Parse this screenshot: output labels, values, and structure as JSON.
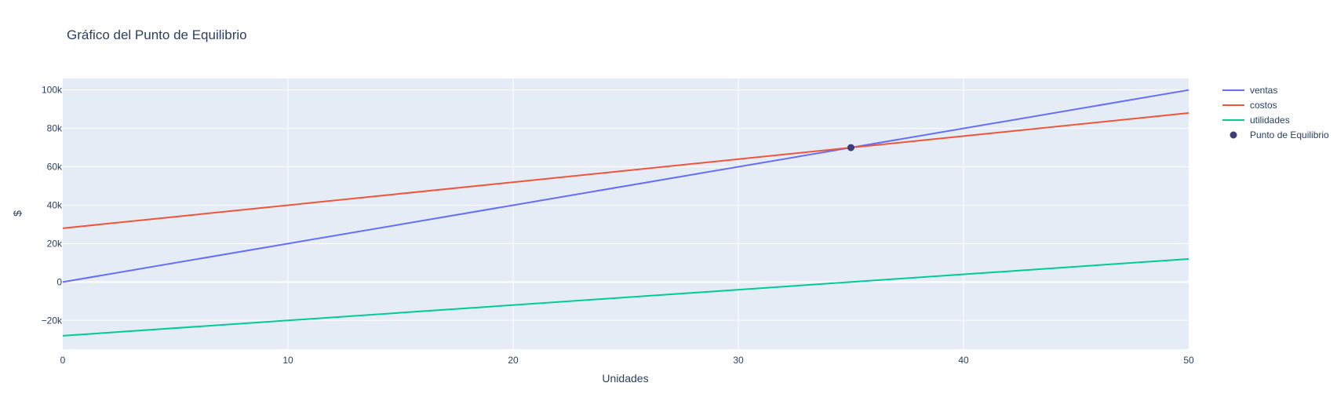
{
  "chart_data": {
    "type": "line",
    "title": "Gráfico del Punto de Equilibrio",
    "xlabel": "Unidades",
    "ylabel": "$",
    "xlim": [
      0,
      50
    ],
    "ylim": [
      -35000,
      106000
    ],
    "x_ticks": [
      0,
      10,
      20,
      30,
      40,
      50
    ],
    "x_tick_labels": [
      "0",
      "10",
      "20",
      "30",
      "40",
      "50"
    ],
    "y_ticks": [
      -20000,
      0,
      20000,
      40000,
      60000,
      80000,
      100000
    ],
    "y_tick_labels": [
      "−20k",
      "0",
      "20k",
      "40k",
      "60k",
      "80k",
      "100k"
    ],
    "grid": true,
    "legend_position": "top-right-outside",
    "series": [
      {
        "name": "ventas",
        "color": "#636efa",
        "mode": "lines",
        "x": [
          0,
          50
        ],
        "y": [
          0,
          100000
        ]
      },
      {
        "name": "costos",
        "color": "#ef553b",
        "mode": "lines",
        "x": [
          0,
          50
        ],
        "y": [
          28000,
          88000
        ]
      },
      {
        "name": "utilidades",
        "color": "#00cc96",
        "mode": "lines",
        "x": [
          0,
          50
        ],
        "y": [
          -28000,
          12000
        ]
      },
      {
        "name": "Punto de Equilibrio",
        "color": "#3d3d7a",
        "mode": "markers",
        "x": [
          35
        ],
        "y": [
          70000
        ]
      }
    ]
  }
}
